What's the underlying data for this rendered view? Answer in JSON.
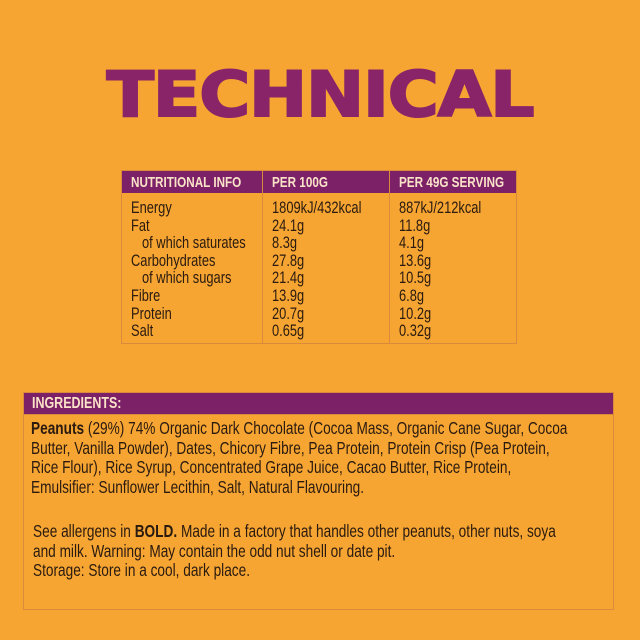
{
  "title": "TECHNICAL",
  "nutrition": {
    "headers": [
      "NUTRITIONAL INFO",
      "PER 100G",
      "PER 49G SERVING"
    ],
    "rows": [
      {
        "label": "Energy",
        "per100": "1809kJ/432kcal",
        "serving": "887kJ/212kcal"
      },
      {
        "label": "Fat",
        "per100": "24.1g",
        "serving": "11.8g"
      },
      {
        "label": "of which saturates",
        "per100": "8.3g",
        "serving": "4.1g"
      },
      {
        "label": "Carbohydrates",
        "per100": "27.8g",
        "serving": "13.6g"
      },
      {
        "label": "of which sugars",
        "per100": "21.4g",
        "serving": "10.5g"
      },
      {
        "label": "Fibre",
        "per100": "13.9g",
        "serving": "6.8g"
      },
      {
        "label": "Protein",
        "per100": "20.7g",
        "serving": "10.2g"
      },
      {
        "label": "Salt",
        "per100": "0.65g",
        "serving": "0.32g"
      }
    ]
  },
  "ingredients": {
    "header": "INGREDIENTS:",
    "bold_start": "Peanuts",
    "lines": [
      " (29%) 74% Organic Dark Chocolate (Cocoa Mass, Organic Cane Sugar, Cocoa",
      "Butter, Vanilla Powder), Dates, Chicory Fibre, Pea Protein, Protein Crisp (Pea Protein,",
      "Rice Flour), Rice Syrup, Concentrated Grape Juice, Cacao Butter, Rice Protein,",
      "Emulsifier: Sunflower Lecithin, Salt, Natural Flavouring."
    ],
    "allergen_prefix": "See allergens in ",
    "allergen_bold": "BOLD.",
    "allergen_lines": [
      " Made in a factory that handles other peanuts, other nuts, soya",
      "and milk. Warning: May contain the odd nut shell or date pit.",
      "Storage: Store in a cool, dark place."
    ]
  }
}
